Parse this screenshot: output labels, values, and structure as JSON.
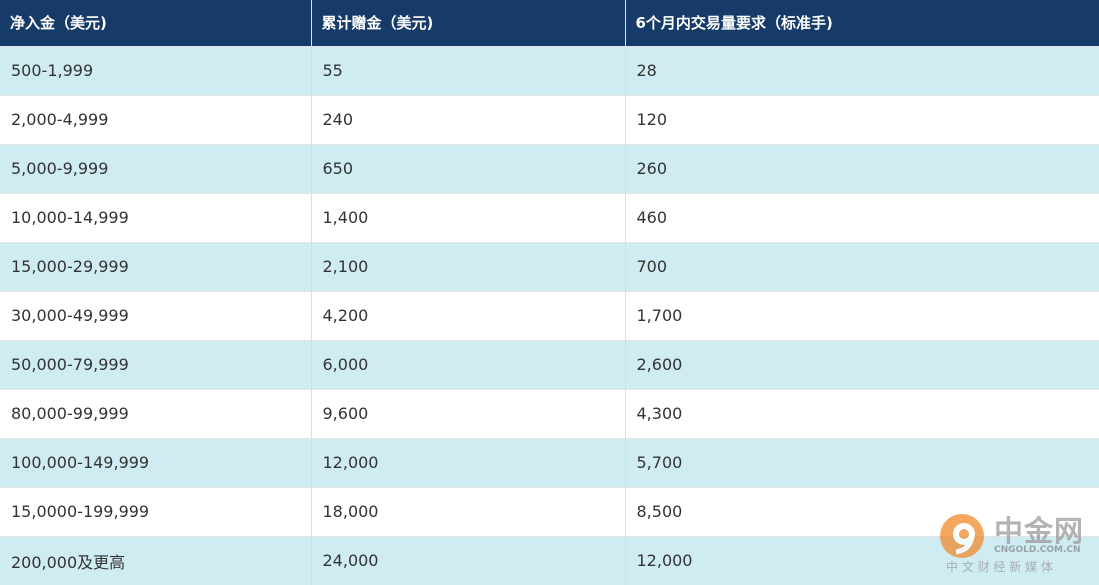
{
  "table": {
    "header": [
      "净入金（美元)",
      "累计赠金（美元)",
      "6个月内交易量要求（标准手)"
    ],
    "rows": [
      [
        "500-1,999",
        "55",
        "28"
      ],
      [
        "2,000-4,999",
        "240",
        "120"
      ],
      [
        "5,000-9,999",
        "650",
        "260"
      ],
      [
        "10,000-14,999",
        "1,400",
        "460"
      ],
      [
        "15,000-29,999",
        "2,100",
        "700"
      ],
      [
        "30,000-49,999",
        "4,200",
        "1,700"
      ],
      [
        "50,000-79,999",
        "6,000",
        "2,600"
      ],
      [
        "80,000-99,999",
        "9,600",
        "4,300"
      ],
      [
        "100,000-149,999",
        "12,000",
        "5,700"
      ],
      [
        "15,0000-199,999",
        "18,000",
        "8,500"
      ],
      [
        "200,000及更高",
        "24,000",
        "12,000"
      ]
    ]
  },
  "watermark": {
    "brand": "中金网",
    "domain": "CNGOLD.COM.CN",
    "slogan": "中 文 财 经 新 媒 体"
  }
}
